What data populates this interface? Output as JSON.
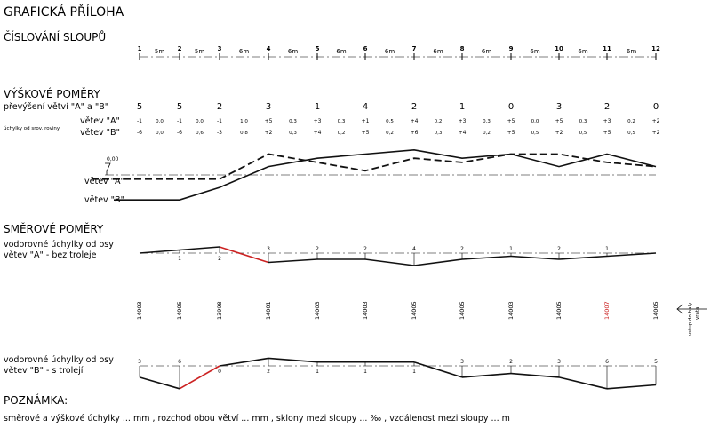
{
  "title": "GRAFICKÁ PŘÍLOHA",
  "sections": {
    "cislovani": "ČÍSLOVÁNÍ SLOUPŮ",
    "vyskove": "VÝŠKOVÉ POMĚRY",
    "prevyseni": "převýšení větví \"A\" a \"B\"",
    "uchylky_od_srov": "úchylky od srov. roviny",
    "vetev_a_quote": "větev \"A\"",
    "vetev_b_quote": "větev \"B\"",
    "zero_mark": "0,00",
    "smerove": "SMĚROVÉ POMĚRY",
    "vodorovne_a_1": "vodorovné úchylky od osy",
    "vodorovne_a_2": "větev \"A\" - bez troleje",
    "vodorovne_b_1": "vodorovné úchylky od osy",
    "vodorovne_b_2": "větev \"B\" - s trolejí",
    "vstup_1": "vstup do haly",
    "vstup_2": "vrata",
    "poznamka": "POZNÁMKA:",
    "note": "směrové a výškové úchylky ... mm , rozchod obou větví ... mm , sklony mezi sloupy ... ‰ , vzdálenost mezi sloupy ... m"
  },
  "columns": [
    "1",
    "2",
    "3",
    "4",
    "5",
    "6",
    "7",
    "8",
    "9",
    "10",
    "11",
    "12"
  ],
  "spans": [
    "5m",
    "5m",
    "6m",
    "6m",
    "6m",
    "6m",
    "6m",
    "6m",
    "6m",
    "6m",
    "6m"
  ],
  "prevyseni": [
    "5",
    "5",
    "2",
    "3",
    "1",
    "4",
    "2",
    "1",
    "0",
    "3",
    "2",
    "0"
  ],
  "row_a_cols": [
    "-1",
    "-1",
    "-1",
    "+5",
    "+3",
    "+1",
    "+4",
    "+3",
    "+5",
    "+5",
    "+3",
    "+2"
  ],
  "row_a_mid": [
    "0,0",
    "0,0",
    "1,0",
    "0,3",
    "0,3",
    "0,5",
    "0,2",
    "0,3",
    "0,0",
    "0,3",
    "0,2"
  ],
  "row_b_cols": [
    "-6",
    "-6",
    "-3",
    "+2",
    "+4",
    "+5",
    "+6",
    "+4",
    "+5",
    "+2",
    "+5",
    "+2"
  ],
  "row_b_mid": [
    "0,0",
    "0,6",
    "0,8",
    "0,3",
    "0,2",
    "0,2",
    "0,3",
    "0,2",
    "0,5",
    "0,5",
    "0,5"
  ],
  "height_a": [
    -1,
    -1,
    -1,
    5,
    3,
    1,
    4,
    3,
    5,
    5,
    3,
    2
  ],
  "height_b": [
    -6,
    -6,
    -3,
    2,
    4,
    5,
    6,
    4,
    5,
    2,
    5,
    2
  ],
  "dev_a_labels": [
    "",
    "1",
    "2",
    "3",
    "2",
    "2",
    "4",
    "2",
    "1",
    "2",
    "1",
    ""
  ],
  "dev_a_values": [
    0,
    1,
    2,
    -3,
    -2,
    -2,
    -4,
    -2,
    -1,
    -2,
    -1,
    0
  ],
  "gauge": [
    "14003",
    "14005",
    "13998",
    "14001",
    "14003",
    "14003",
    "14005",
    "14005",
    "14003",
    "14005",
    "14007",
    "14005"
  ],
  "gauge_highlight_index": 10,
  "dev_b_labels": [
    "3",
    "6",
    "0",
    "2",
    "1",
    "1",
    "1",
    "3",
    "2",
    "3",
    "6",
    "5"
  ],
  "dev_b_values": [
    -3,
    -6,
    0,
    2,
    1,
    1,
    1,
    -3,
    -2,
    -3,
    -6,
    -5
  ],
  "colors": {
    "line": "#111111",
    "highlight": "#cc2222",
    "axis": "#555555"
  }
}
